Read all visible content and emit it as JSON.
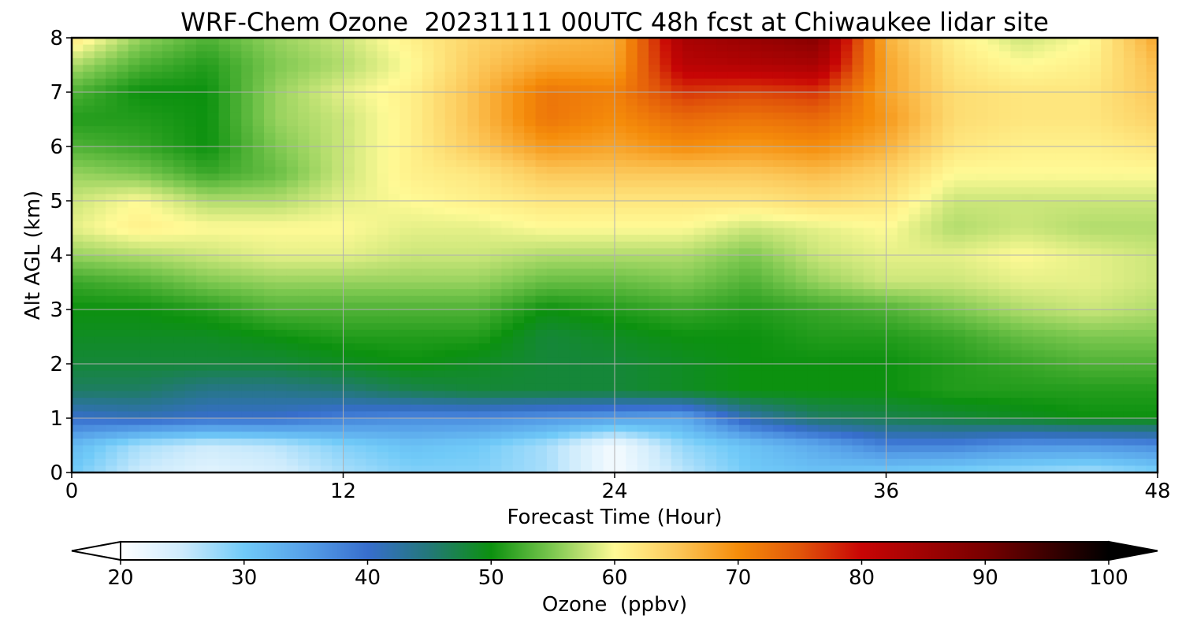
{
  "chart_data": {
    "type": "heatmap",
    "title": "WRF-Chem Ozone  20231111 00UTC 48h fcst at Chiwaukee lidar site",
    "xlabel": "Forecast Time (Hour)",
    "ylabel": "Alt AGL (km)",
    "xlim": [
      0,
      48
    ],
    "ylim": [
      0,
      8
    ],
    "xticks": [
      "0",
      "12",
      "24",
      "36",
      "48"
    ],
    "yticks": [
      "0",
      "1",
      "2",
      "3",
      "4",
      "5",
      "6",
      "7",
      "8"
    ],
    "grid": true,
    "colorbar": {
      "label": "Ozone  (ppbv)",
      "range": [
        20,
        100
      ],
      "ticks": [
        "20",
        "30",
        "40",
        "50",
        "60",
        "70",
        "80",
        "90",
        "100"
      ],
      "extend": "both"
    },
    "x": [
      0,
      3,
      6,
      9,
      12,
      15,
      18,
      21,
      24,
      27,
      30,
      33,
      36,
      39,
      42,
      45,
      48
    ],
    "y": [
      0,
      0.5,
      1,
      1.5,
      2,
      2.5,
      3,
      3.5,
      4,
      4.5,
      5,
      5.5,
      6,
      6.5,
      7,
      7.5,
      8
    ],
    "z": [
      [
        30,
        25,
        23,
        24,
        27,
        29,
        29,
        27,
        21,
        26,
        30,
        31,
        30,
        29,
        28,
        27,
        29
      ],
      [
        32,
        27,
        25,
        26,
        29,
        31,
        30,
        27,
        21,
        28,
        31,
        34,
        38,
        38,
        36,
        36,
        37
      ],
      [
        40,
        41,
        40,
        40,
        38,
        37,
        37,
        36,
        35,
        34,
        42,
        46,
        47,
        48,
        49,
        50,
        50
      ],
      [
        46,
        46,
        44,
        44,
        45,
        47,
        48,
        48,
        48,
        49,
        50,
        50,
        50,
        51,
        51,
        51,
        51
      ],
      [
        48,
        48,
        48,
        48,
        49,
        50,
        49,
        48,
        48,
        49,
        50,
        50,
        50,
        51,
        52,
        53,
        53
      ],
      [
        49,
        49,
        49,
        50,
        51,
        51,
        51,
        48,
        49,
        50,
        50,
        51,
        51,
        52,
        54,
        55,
        55
      ],
      [
        50,
        50,
        51,
        53,
        53,
        53,
        53,
        50,
        51,
        52,
        51,
        52,
        53,
        55,
        57,
        58,
        57
      ],
      [
        52,
        53,
        55,
        56,
        56,
        56,
        56,
        54,
        54,
        55,
        53,
        56,
        58,
        58,
        59,
        59,
        58
      ],
      [
        56,
        57,
        58,
        59,
        59,
        58,
        58,
        57,
        57,
        57,
        55,
        58,
        59,
        59,
        60,
        59,
        58
      ],
      [
        59,
        61,
        60,
        60,
        60,
        59,
        59,
        60,
        60,
        60,
        58,
        59,
        60,
        57,
        58,
        57,
        57
      ],
      [
        58,
        60,
        57,
        57,
        59,
        60,
        61,
        62,
        62,
        62,
        62,
        63,
        62,
        58,
        58,
        58,
        58
      ],
      [
        56,
        55,
        52,
        54,
        58,
        61,
        62,
        65,
        65,
        65,
        65,
        66,
        64,
        60,
        60,
        60,
        60
      ],
      [
        53,
        52,
        50,
        55,
        58,
        61,
        65,
        69,
        68,
        70,
        69,
        70,
        67,
        62,
        61,
        61,
        62
      ],
      [
        51,
        51,
        50,
        56,
        58,
        61,
        66,
        72,
        70,
        73,
        72,
        73,
        69,
        63,
        62,
        62,
        64
      ],
      [
        53,
        50,
        50,
        56,
        59,
        61,
        66,
        72,
        71,
        77,
        76,
        77,
        68,
        63,
        62,
        62,
        65
      ],
      [
        57,
        53,
        51,
        55,
        57,
        60,
        65,
        68,
        68,
        82,
        83,
        84,
        68,
        62,
        60,
        61,
        66
      ],
      [
        62,
        56,
        53,
        56,
        58,
        61,
        64,
        66,
        67,
        84,
        86,
        88,
        67,
        61,
        58,
        60,
        68
      ]
    ]
  }
}
